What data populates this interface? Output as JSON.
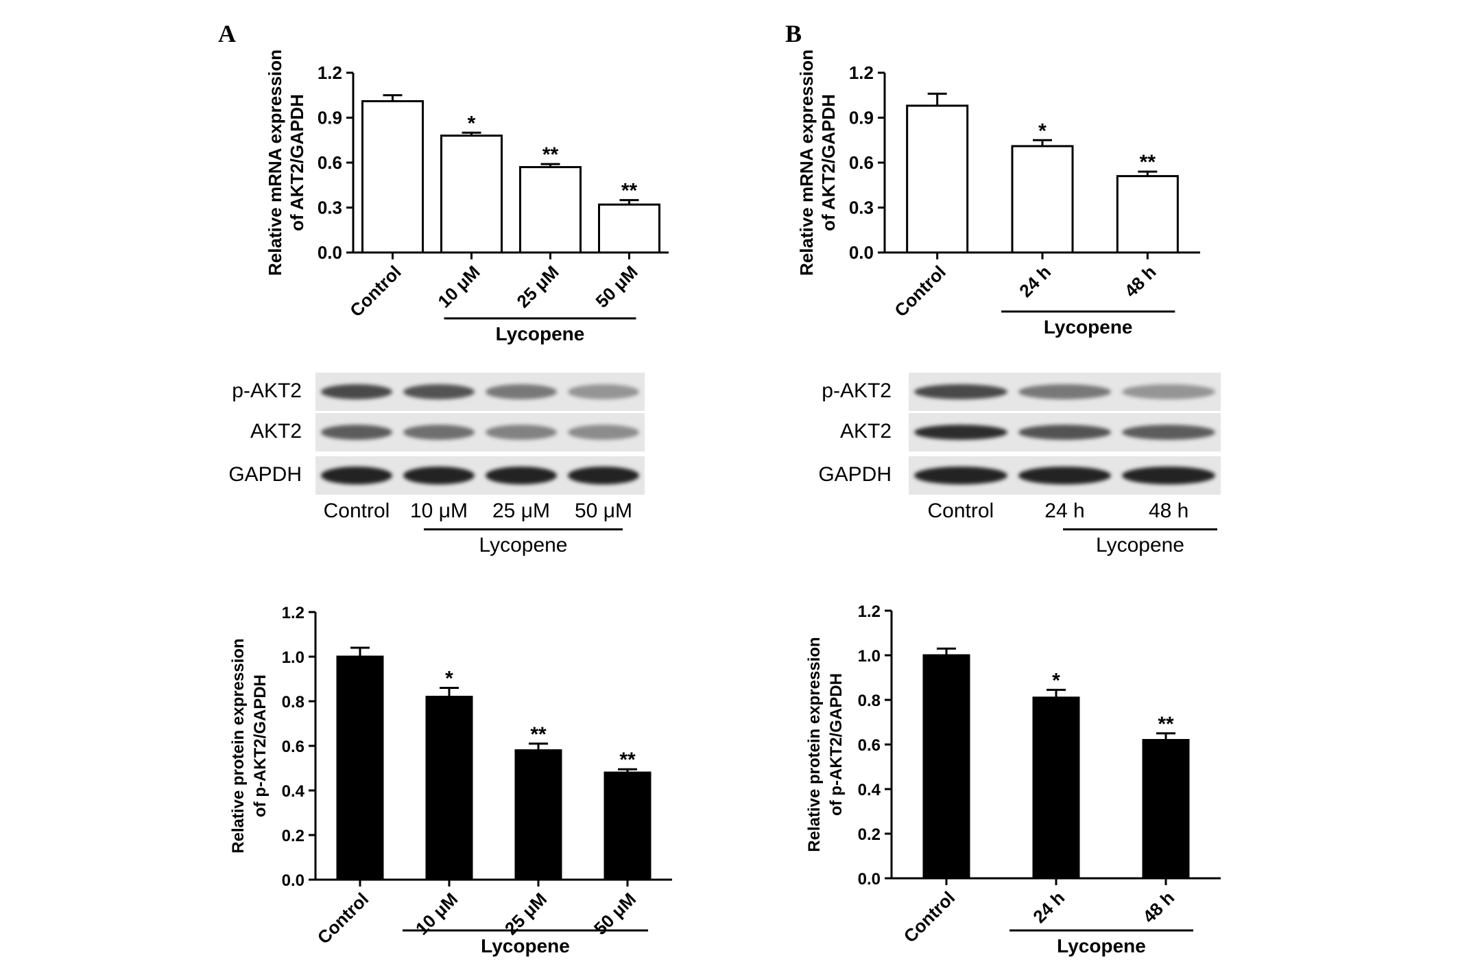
{
  "panels": [
    {
      "letter": "A",
      "mrna_chart": {
        "type": "bar",
        "style": "open",
        "ylabel_lines": [
          "Relative mRNA expression",
          "of AKT2/GAPDH"
        ],
        "ylim": [
          0,
          1.2
        ],
        "yticks": [
          "0.0",
          "0.3",
          "0.6",
          "0.9",
          "1.2"
        ],
        "categories": [
          "Control",
          "10 μM",
          "25 μM",
          "50 μM"
        ],
        "values": [
          1.01,
          0.78,
          0.57,
          0.32
        ],
        "errors": [
          0.04,
          0.02,
          0.02,
          0.03
        ],
        "significance": [
          "",
          "*",
          "**",
          "**"
        ],
        "group_label": "Lycopene"
      },
      "blot": {
        "rows": [
          "p-AKT2",
          "AKT2",
          "GAPDH"
        ],
        "lanes": [
          "Control",
          "10 μM",
          "25 μM",
          "50 μM"
        ],
        "group_label": "Lycopene",
        "band_intensity": [
          [
            0.8,
            0.75,
            0.55,
            0.4
          ],
          [
            0.7,
            0.6,
            0.5,
            0.45
          ],
          [
            1.0,
            1.0,
            1.0,
            1.0
          ]
        ]
      },
      "protein_chart": {
        "type": "bar",
        "style": "filled",
        "ylabel_lines": [
          "Relative protein expression",
          "of p-AKT2/GAPDH"
        ],
        "ylim": [
          0,
          1.2
        ],
        "yticks": [
          "0.0",
          "0.2",
          "0.4",
          "0.6",
          "0.8",
          "1.0",
          "1.2"
        ],
        "categories": [
          "Control",
          "10 μM",
          "25 μM",
          "50 μM"
        ],
        "values": [
          1.0,
          0.82,
          0.58,
          0.48
        ],
        "errors": [
          0.04,
          0.04,
          0.03,
          0.015
        ],
        "significance": [
          "",
          "*",
          "**",
          "**"
        ],
        "group_label": "Lycopene"
      }
    },
    {
      "letter": "B",
      "mrna_chart": {
        "type": "bar",
        "style": "open",
        "ylabel_lines": [
          "Relative mRNA expression",
          "of AKT2/GAPDH"
        ],
        "ylim": [
          0,
          1.2
        ],
        "yticks": [
          "0.0",
          "0.3",
          "0.6",
          "0.9",
          "1.2"
        ],
        "categories": [
          "Control",
          "24 h",
          "48 h"
        ],
        "values": [
          0.98,
          0.71,
          0.51
        ],
        "errors": [
          0.08,
          0.04,
          0.03
        ],
        "significance": [
          "",
          "*",
          "**"
        ],
        "group_label": "Lycopene"
      },
      "blot": {
        "rows": [
          "p-AKT2",
          "AKT2",
          "GAPDH"
        ],
        "lanes": [
          "Control",
          "24 h",
          "48 h"
        ],
        "group_label": "Lycopene",
        "band_intensity": [
          [
            0.8,
            0.55,
            0.4
          ],
          [
            0.95,
            0.75,
            0.7
          ],
          [
            1.0,
            1.0,
            1.0
          ]
        ]
      },
      "protein_chart": {
        "type": "bar",
        "style": "filled",
        "ylabel_lines": [
          "Relative protein expression",
          "of p-AKT2/GAPDH"
        ],
        "ylim": [
          0,
          1.2
        ],
        "yticks": [
          "0.0",
          "0.2",
          "0.4",
          "0.6",
          "0.8",
          "1.0",
          "1.2"
        ],
        "categories": [
          "Control",
          "24 h",
          "48 h"
        ],
        "values": [
          1.0,
          0.81,
          0.62
        ],
        "errors": [
          0.03,
          0.035,
          0.03
        ],
        "significance": [
          "",
          "*",
          "**"
        ],
        "group_label": "Lycopene"
      }
    }
  ],
  "chart_data": [
    {
      "type": "bar",
      "ylabel": "Relative mRNA expression of AKT2/GAPDH",
      "categories": [
        "Control",
        "10 μM",
        "25 μM",
        "50 μM"
      ],
      "values": [
        1.01,
        0.78,
        0.57,
        0.32
      ],
      "ylim": [
        0,
        1.2
      ]
    },
    {
      "type": "bar",
      "ylabel": "Relative protein expression of p-AKT2/GAPDH",
      "categories": [
        "Control",
        "10 μM",
        "25 μM",
        "50 μM"
      ],
      "values": [
        1.0,
        0.82,
        0.58,
        0.48
      ],
      "ylim": [
        0,
        1.2
      ]
    },
    {
      "type": "bar",
      "ylabel": "Relative mRNA expression of AKT2/GAPDH",
      "categories": [
        "Control",
        "24 h",
        "48 h"
      ],
      "values": [
        0.98,
        0.71,
        0.51
      ],
      "ylim": [
        0,
        1.2
      ]
    },
    {
      "type": "bar",
      "ylabel": "Relative protein expression of p-AKT2/GAPDH",
      "categories": [
        "Control",
        "24 h",
        "48 h"
      ],
      "values": [
        1.0,
        0.81,
        0.62
      ],
      "ylim": [
        0,
        1.2
      ]
    }
  ]
}
